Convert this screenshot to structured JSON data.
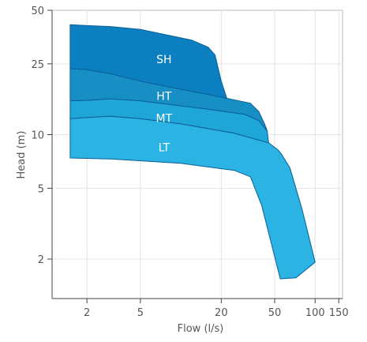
{
  "chart_data": {
    "type": "area",
    "title": "",
    "xlabel": "Flow (l/s)",
    "ylabel": "Head (m)",
    "x_scale": "log",
    "y_scale": "log",
    "xlim": [
      1.1,
      160
    ],
    "ylim": [
      1.2,
      50
    ],
    "grid": true,
    "x_ticks": [
      2,
      5,
      20,
      50,
      100,
      150
    ],
    "y_ticks": [
      2,
      5,
      10,
      25,
      50
    ],
    "regions": [
      {
        "name": "LT",
        "color": "#2bb3e3",
        "label_at": [
          7.5,
          8.5
        ],
        "boundary": [
          [
            1.5,
            7.4
          ],
          [
            3,
            7.3
          ],
          [
            10,
            6.9
          ],
          [
            25,
            6.3
          ],
          [
            33,
            5.8
          ],
          [
            40,
            4.0
          ],
          [
            55,
            1.55
          ],
          [
            72,
            1.57
          ],
          [
            100,
            1.92
          ],
          [
            80,
            3.8
          ],
          [
            65,
            6.5
          ],
          [
            56,
            7.8
          ],
          [
            53,
            8.2
          ],
          [
            45,
            9.0
          ],
          [
            25,
            10.2
          ],
          [
            10,
            11.5
          ],
          [
            5,
            12.3
          ],
          [
            3,
            12.7
          ],
          [
            2,
            12.5
          ],
          [
            1.5,
            12.3
          ]
        ]
      },
      {
        "name": "MT",
        "color": "#1ea6d8",
        "label_at": [
          7.5,
          12.4
        ],
        "boundary": [
          [
            1.5,
            12.3
          ],
          [
            2,
            12.5
          ],
          [
            3,
            12.7
          ],
          [
            5,
            12.3
          ],
          [
            10,
            11.5
          ],
          [
            25,
            10.2
          ],
          [
            45,
            9.0
          ],
          [
            44,
            10.5
          ],
          [
            38,
            12.0
          ],
          [
            30,
            13.0
          ],
          [
            15,
            14.0
          ],
          [
            5,
            15.5
          ],
          [
            3,
            15.9
          ],
          [
            2,
            15.6
          ],
          [
            1.5,
            15.5
          ]
        ]
      },
      {
        "name": "HT",
        "color": "#178fc5",
        "label_at": [
          7.5,
          16.5
        ],
        "boundary": [
          [
            1.5,
            15.5
          ],
          [
            2,
            15.6
          ],
          [
            3,
            15.9
          ],
          [
            5,
            15.5
          ],
          [
            15,
            14.0
          ],
          [
            30,
            13.0
          ],
          [
            38,
            12.0
          ],
          [
            44,
            10.5
          ],
          [
            42,
            11.5
          ],
          [
            38,
            13.5
          ],
          [
            33,
            15.0
          ],
          [
            22,
            16.0
          ],
          [
            15,
            17.0
          ],
          [
            10,
            18.0
          ],
          [
            5,
            20.0
          ],
          [
            3,
            22.0
          ],
          [
            2,
            23.2
          ],
          [
            1.5,
            23.5
          ]
        ]
      },
      {
        "name": "SH",
        "color": "#0c7fc1",
        "label_at": [
          7.5,
          26.5
        ],
        "boundary": [
          [
            1.5,
            23.5
          ],
          [
            2,
            23.2
          ],
          [
            3,
            22.0
          ],
          [
            5,
            20.0
          ],
          [
            10,
            18.0
          ],
          [
            15,
            17.0
          ],
          [
            22,
            16.0
          ],
          [
            20,
            20.0
          ],
          [
            18,
            28.0
          ],
          [
            16,
            31.0
          ],
          [
            12,
            34.0
          ],
          [
            5,
            39.0
          ],
          [
            3,
            40.5
          ],
          [
            2,
            41.0
          ],
          [
            1.5,
            41.5
          ]
        ]
      }
    ]
  }
}
